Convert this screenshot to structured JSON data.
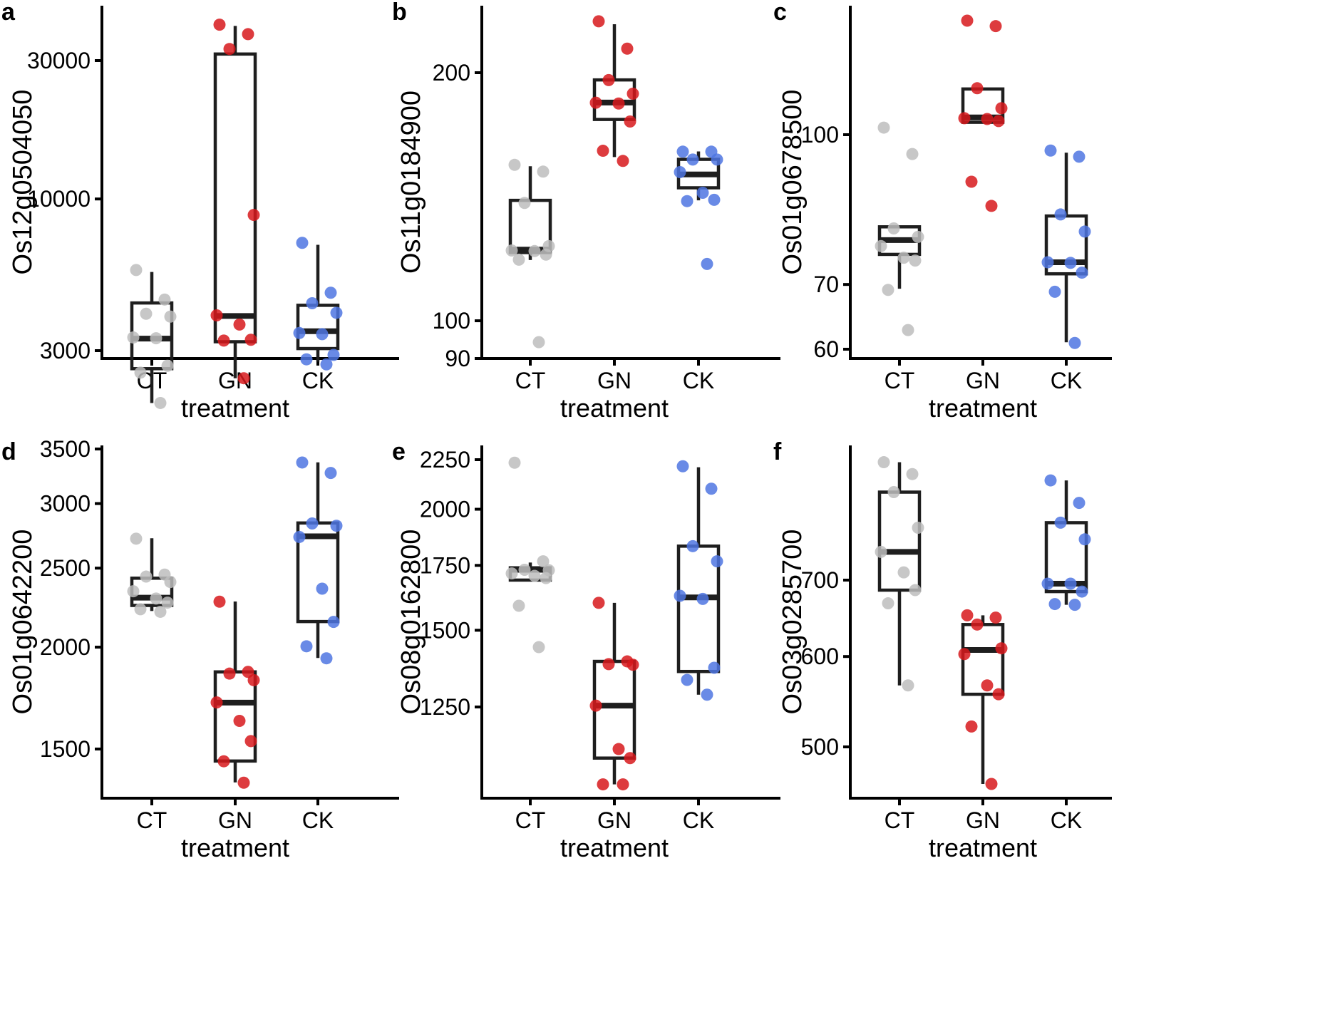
{
  "figure": {
    "panel_count": 6,
    "group_colors": {
      "CT": "#bdbdbd",
      "GN": "#d7191c",
      "CK": "#4f75e2"
    }
  },
  "chart_data": [
    {
      "panel": "a",
      "type": "box",
      "scale": "log",
      "title": "",
      "xlabel": "treatment",
      "ylabel": "Os12g0504050",
      "categories": [
        "CT",
        "GN",
        "CK"
      ],
      "yticks": [
        3000,
        10000,
        30000
      ],
      "ytick_labels": [
        "3000",
        "10000",
        "30000"
      ],
      "ylim": [
        1700,
        48000
      ],
      "series": [
        {
          "name": "CT",
          "points": [
            5690,
            4500,
            4020,
            3930,
            3330,
            3310,
            2660,
            2520,
            1980
          ],
          "box": {
            "lower_whisker": 1980,
            "q1": 2600,
            "median": 3300,
            "q3": 4380,
            "upper_whisker": 5600
          }
        },
        {
          "name": "GN",
          "points": [
            39900,
            37000,
            32900,
            8810,
            3970,
            3690,
            3270,
            3250,
            2410
          ],
          "box": {
            "lower_whisker": 2410,
            "q1": 3220,
            "median": 3950,
            "q3": 31600,
            "upper_whisker": 39500
          }
        },
        {
          "name": "CK",
          "points": [
            7060,
            4750,
            4370,
            4050,
            3450,
            3420,
            2900,
            2800,
            2690
          ],
          "box": {
            "lower_whisker": 2750,
            "q1": 3050,
            "median": 3500,
            "q3": 4300,
            "upper_whisker": 6950
          }
        }
      ]
    },
    {
      "panel": "b",
      "type": "box",
      "scale": "log",
      "title": "",
      "xlabel": "treatment",
      "ylabel": "Os11g0184900",
      "categories": [
        "CT",
        "GN",
        "CK"
      ],
      "yticks": [
        90,
        100,
        200
      ],
      "ytick_labels": [
        "90",
        "100",
        "200"
      ],
      "ylim": [
        89,
        245
      ],
      "series": [
        {
          "name": "CT",
          "points": [
            154.6,
            151.7,
            139.0,
            123.2,
            121.7,
            121.5,
            120.3,
            118.6,
            94.2
          ],
          "box": {
            "lower_whisker": 118.5,
            "q1": 121.0,
            "median": 122.0,
            "q3": 140.0,
            "upper_whisker": 154.0
          }
        },
        {
          "name": "GN",
          "points": [
            230.9,
            213.9,
            195.9,
            188.6,
            183.9,
            183.5,
            174.5,
            160.8,
            156.3
          ],
          "box": {
            "lower_whisker": 158.0,
            "q1": 175.5,
            "median": 184.0,
            "q3": 196.0,
            "upper_whisker": 229.0
          }
        },
        {
          "name": "CK",
          "points": [
            160.4,
            160.4,
            156.9,
            156.9,
            151.5,
            143.0,
            140.2,
            139.7,
            117.2
          ],
          "box": {
            "lower_whisker": 140.0,
            "q1": 145.0,
            "median": 150.5,
            "q3": 157.0,
            "upper_whisker": 160.5
          }
        }
      ]
    },
    {
      "panel": "c",
      "type": "box",
      "scale": "log",
      "title": "",
      "xlabel": "treatment",
      "ylabel": "Os01g0678500",
      "categories": [
        "CT",
        "GN",
        "CK"
      ],
      "yticks": [
        60,
        70,
        100
      ],
      "ytick_labels": [
        "60",
        "70",
        "100"
      ],
      "ylim": [
        58.5,
        140
      ],
      "series": [
        {
          "name": "CT",
          "points": [
            101.7,
            95.5,
            80.0,
            78.4,
            76.7,
            74.6,
            74.1,
            69.1,
            62.8
          ],
          "box": {
            "lower_whisker": 69.3,
            "q1": 75.2,
            "median": 77.8,
            "q3": 80.3,
            "upper_whisker": 80.3
          }
        },
        {
          "name": "GN",
          "points": [
            131.2,
            129.5,
            111.7,
            106.5,
            104.0,
            103.8,
            103.3,
            89.4,
            84.4
          ],
          "box": {
            "lower_whisker": 103.0,
            "q1": 103.0,
            "median": 104.2,
            "q3": 111.5,
            "upper_whisker": 111.5
          }
        },
        {
          "name": "CK",
          "points": [
            96.3,
            94.9,
            82.7,
            79.4,
            73.8,
            73.7,
            72.0,
            68.8,
            60.9
          ],
          "box": {
            "lower_whisker": 61.0,
            "q1": 71.8,
            "median": 73.8,
            "q3": 82.4,
            "upper_whisker": 95.8
          }
        }
      ]
    },
    {
      "panel": "d",
      "type": "box",
      "scale": "log",
      "title": "",
      "xlabel": "treatment",
      "ylabel": "Os01g0642200",
      "categories": [
        "CT",
        "GN",
        "CK"
      ],
      "yticks": [
        1500,
        2000,
        2500,
        3000,
        3500
      ],
      "ytick_labels": [
        "1500",
        "2000",
        "2500",
        "3000",
        "3500"
      ],
      "ylim": [
        1330,
        3520
      ],
      "series": [
        {
          "name": "CT",
          "points": [
            2717,
            2455,
            2441,
            2404,
            2342,
            2294,
            2268,
            2226,
            2210
          ],
          "box": {
            "lower_whisker": 2215,
            "q1": 2250,
            "median": 2300,
            "q3": 2430,
            "upper_whisker": 2720
          }
        },
        {
          "name": "GN",
          "points": [
            2274,
            1865,
            1856,
            1822,
            1711,
            1624,
            1534,
            1449,
            1364
          ],
          "box": {
            "lower_whisker": 1365,
            "q1": 1450,
            "median": 1710,
            "q3": 1865,
            "upper_whisker": 2275
          }
        },
        {
          "name": "CK",
          "points": [
            3369,
            3271,
            2836,
            2818,
            2730,
            2359,
            2148,
            2005,
            1938
          ],
          "box": {
            "lower_whisker": 1940,
            "q1": 2150,
            "median": 2735,
            "q3": 2840,
            "upper_whisker": 3370
          }
        }
      ]
    },
    {
      "panel": "e",
      "type": "box",
      "scale": "log",
      "title": "",
      "xlabel": "treatment",
      "ylabel": "Os08g0162800",
      "categories": [
        "CT",
        "GN",
        "CK"
      ],
      "yticks": [
        1250,
        1500,
        1750,
        2000,
        2250
      ],
      "ytick_labels": [
        "1250",
        "1500",
        "1750",
        "2000",
        "2250"
      ],
      "ylim": [
        1010,
        2300
      ],
      "series": [
        {
          "name": "CT",
          "points": [
            2234,
            1767,
            1732,
            1730,
            1717,
            1707,
            1698,
            1590,
            1441
          ],
          "box": {
            "lower_whisker": 1690,
            "q1": 1690,
            "median": 1732,
            "q3": 1740,
            "upper_whisker": 1762
          }
        },
        {
          "name": "GN",
          "points": [
            1601,
            1393,
            1384,
            1382,
            1254,
            1131,
            1107,
            1040,
            1040
          ],
          "box": {
            "lower_whisker": 1040,
            "q1": 1107,
            "median": 1254,
            "q3": 1393,
            "upper_whisker": 1601
          }
        },
        {
          "name": "CK",
          "points": [
            2215,
            2100,
            1832,
            1767,
            1628,
            1616,
            1372,
            1333,
            1287
          ],
          "box": {
            "lower_whisker": 1287,
            "q1": 1360,
            "median": 1622,
            "q3": 1832,
            "upper_whisker": 2210
          }
        }
      ]
    },
    {
      "panel": "f",
      "type": "box",
      "scale": "log",
      "title": "",
      "xlabel": "treatment",
      "ylabel": "Os03g0285700",
      "categories": [
        "CT",
        "GN",
        "CK"
      ],
      "yticks": [
        500,
        600,
        700
      ],
      "ytick_labels": [
        "500",
        "600",
        "700"
      ],
      "ylim": [
        455,
        920
      ],
      "series": [
        {
          "name": "CT",
          "points": [
            888,
            867,
            836,
            778,
            741,
            711,
            686,
            668,
            566
          ],
          "box": {
            "lower_whisker": 566,
            "q1": 686,
            "median": 741,
            "q3": 836,
            "upper_whisker": 888
          }
        },
        {
          "name": "GN",
          "points": [
            652,
            649,
            640,
            610,
            603,
            566,
            556,
            521,
            464
          ],
          "box": {
            "lower_whisker": 464,
            "q1": 556,
            "median": 608,
            "q3": 640,
            "upper_whisker": 652
          }
        },
        {
          "name": "CK",
          "points": [
            856,
            818,
            786,
            760,
            695,
            695,
            684,
            667,
            666
          ],
          "box": {
            "lower_whisker": 666,
            "q1": 684,
            "median": 695,
            "q3": 786,
            "upper_whisker": 856
          }
        }
      ]
    }
  ]
}
